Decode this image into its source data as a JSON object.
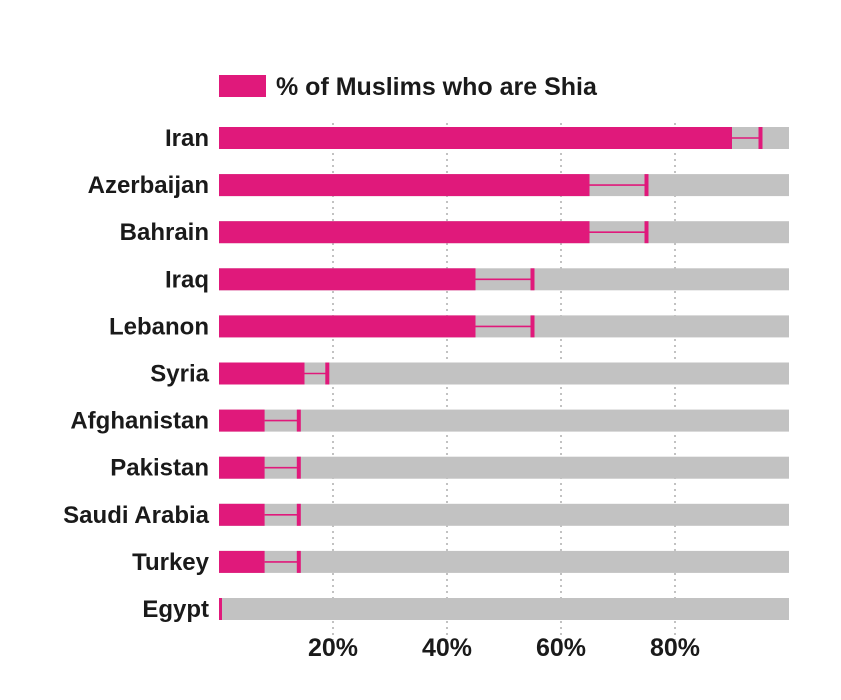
{
  "chart_data": {
    "type": "bar",
    "orientation": "horizontal",
    "categories": [
      "Iran",
      "Azerbaijan",
      "Bahrain",
      "Iraq",
      "Lebanon",
      "Syria",
      "Afghanistan",
      "Pakistan",
      "Saudi Arabia",
      "Turkey",
      "Egypt"
    ],
    "series": [
      {
        "name": "% of Muslims who are Shia",
        "low": [
          90,
          65,
          65,
          45,
          45,
          15,
          8,
          8,
          8,
          8,
          0.5
        ],
        "high": [
          95,
          75,
          75,
          55,
          55,
          19,
          14,
          14,
          14,
          14,
          0.5
        ]
      }
    ],
    "xlim": [
      0,
      100
    ],
    "xticks": [
      20,
      40,
      60,
      80
    ],
    "xtick_labels": [
      "20%",
      "40%",
      "60%",
      "80%"
    ],
    "grid": "vertical dotted",
    "legend_position": "top",
    "colors": {
      "bar": "#e0197b",
      "track": "#c2c2c2",
      "grid": "#9a9a9a"
    }
  }
}
